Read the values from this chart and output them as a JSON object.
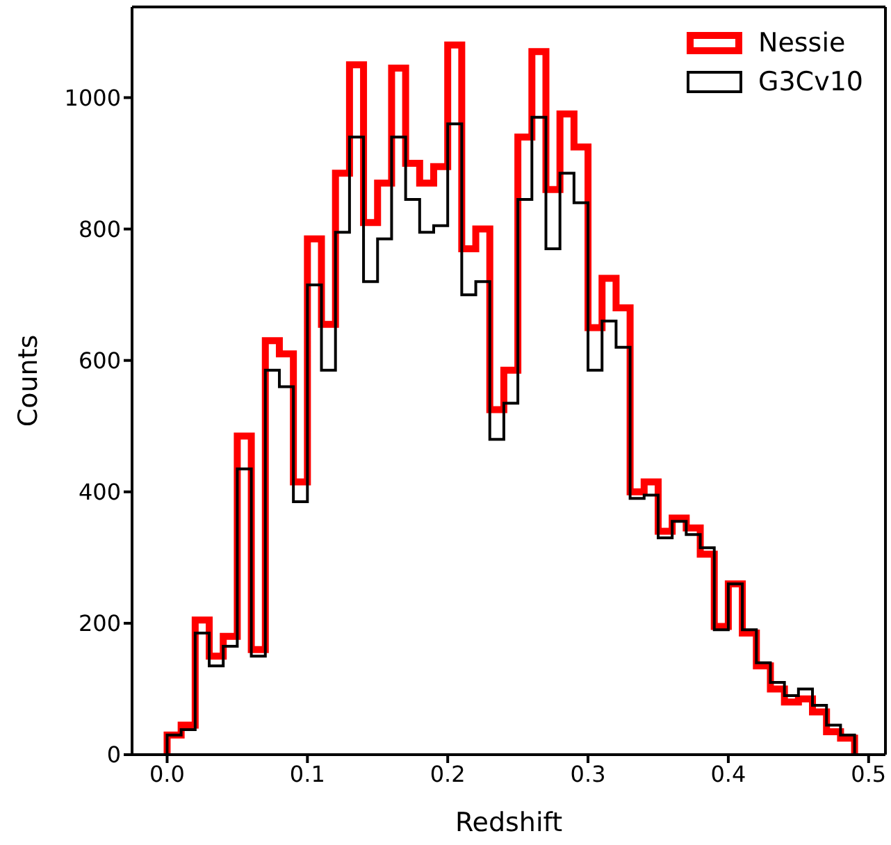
{
  "chart_data": {
    "type": "histogram",
    "xlabel": "Redshift",
    "ylabel": "Counts",
    "bins": [
      0,
      0.01,
      0.02,
      0.03,
      0.04,
      0.05,
      0.06,
      0.07,
      0.08,
      0.09,
      0.1,
      0.11,
      0.12,
      0.13,
      0.14,
      0.15,
      0.16,
      0.17,
      0.18,
      0.19,
      0.2,
      0.21,
      0.22,
      0.23,
      0.24,
      0.25,
      0.26,
      0.27,
      0.28,
      0.29,
      0.3,
      0.31,
      0.32,
      0.33,
      0.34,
      0.35,
      0.36,
      0.37,
      0.38,
      0.39,
      0.4,
      0.41,
      0.42,
      0.43,
      0.44,
      0.45,
      0.46,
      0.47,
      0.48,
      0.49
    ],
    "series": [
      {
        "name": "Nessie",
        "color": "#ff0000",
        "values": [
          30,
          45,
          205,
          150,
          180,
          485,
          160,
          630,
          610,
          415,
          785,
          655,
          885,
          1050,
          810,
          870,
          1045,
          900,
          870,
          895,
          1080,
          770,
          800,
          525,
          585,
          940,
          1070,
          860,
          975,
          925,
          650,
          725,
          680,
          400,
          415,
          340,
          360,
          345,
          305,
          195,
          260,
          185,
          135,
          100,
          80,
          85,
          65,
          35,
          25
        ]
      },
      {
        "name": "G3Cv10",
        "color": "#000000",
        "values": [
          30,
          38,
          185,
          135,
          165,
          435,
          150,
          585,
          560,
          385,
          715,
          585,
          795,
          940,
          720,
          785,
          940,
          845,
          795,
          805,
          960,
          700,
          720,
          480,
          535,
          845,
          970,
          770,
          885,
          840,
          585,
          660,
          620,
          390,
          395,
          330,
          355,
          335,
          315,
          190,
          260,
          190,
          140,
          110,
          90,
          100,
          75,
          45,
          30
        ]
      }
    ],
    "xlim": [
      -0.025,
      0.512
    ],
    "ylim": [
      0,
      1138
    ],
    "xticks": [
      {
        "value": 0,
        "label": "0.0"
      },
      {
        "value": 0.1,
        "label": "0.1"
      },
      {
        "value": 0.2,
        "label": "0.2"
      },
      {
        "value": 0.3,
        "label": "0.3"
      },
      {
        "value": 0.4,
        "label": "0.4"
      },
      {
        "value": 0.5,
        "label": "0.5"
      }
    ],
    "yticks": [
      0,
      200,
      400,
      600,
      800,
      1000
    ],
    "legend": "top right"
  }
}
